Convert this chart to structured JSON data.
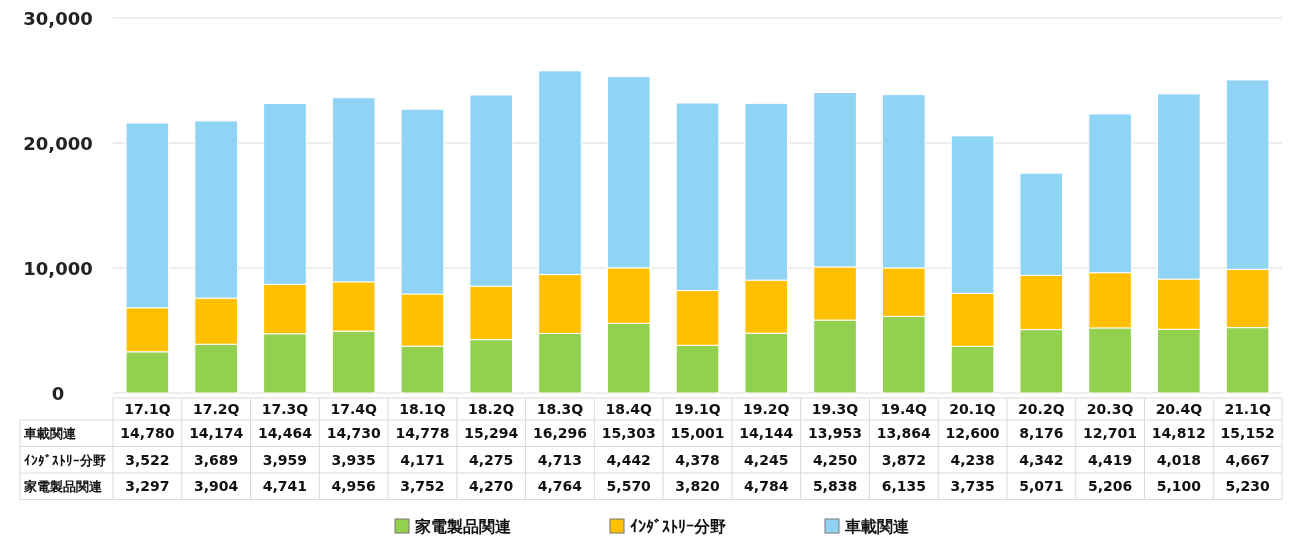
{
  "chart_data": {
    "type": "bar",
    "stacked": true,
    "categories": [
      "17.1Q",
      "17.2Q",
      "17.3Q",
      "17.4Q",
      "18.1Q",
      "18.2Q",
      "18.3Q",
      "18.4Q",
      "19.1Q",
      "19.2Q",
      "19.3Q",
      "19.4Q",
      "20.1Q",
      "20.2Q",
      "20.3Q",
      "20.4Q",
      "21.1Q"
    ],
    "series": [
      {
        "name": "家電製品関連",
        "color": "#92d050",
        "values": [
          3297,
          3904,
          4741,
          4956,
          3752,
          4270,
          4764,
          5570,
          3820,
          4784,
          5838,
          6135,
          3735,
          5071,
          5206,
          5100,
          5230
        ],
        "value_labels": [
          "3,297",
          "3,904",
          "4,741",
          "4,956",
          "3,752",
          "4,270",
          "4,764",
          "5,570",
          "3,820",
          "4,784",
          "5,838",
          "6,135",
          "3,735",
          "5,071",
          "5,206",
          "5,100",
          "5,230"
        ]
      },
      {
        "name": "ｲﾝﾀﾞｽﾄﾘｰ分野",
        "color": "#ffc000",
        "values": [
          3522,
          3689,
          3959,
          3935,
          4171,
          4275,
          4713,
          4442,
          4378,
          4245,
          4250,
          3872,
          4238,
          4342,
          4419,
          4018,
          4667
        ],
        "value_labels": [
          "3,522",
          "3,689",
          "3,959",
          "3,935",
          "4,171",
          "4,275",
          "4,713",
          "4,442",
          "4,378",
          "4,245",
          "4,250",
          "3,872",
          "4,238",
          "4,342",
          "4,419",
          "4,018",
          "4,667"
        ]
      },
      {
        "name": "車載関連",
        "color": "#8fd3f5",
        "values": [
          14780,
          14174,
          14464,
          14730,
          14778,
          15294,
          16296,
          15303,
          15001,
          14144,
          13953,
          13864,
          12600,
          8176,
          12701,
          14812,
          15152
        ],
        "value_labels": [
          "14,780",
          "14,174",
          "14,464",
          "14,730",
          "14,778",
          "15,294",
          "16,296",
          "15,303",
          "15,001",
          "14,144",
          "13,953",
          "13,864",
          "12,600",
          "8,176",
          "12,701",
          "14,812",
          "15,152"
        ]
      }
    ],
    "ylim": [
      0,
      30000
    ],
    "yticks": [
      {
        "value": 0,
        "label": "0"
      },
      {
        "value": 10000,
        "label": "10,000"
      },
      {
        "value": 20000,
        "label": "20,000"
      },
      {
        "value": 30000,
        "label": "30,000"
      }
    ],
    "grid": "y",
    "legend": "bottom"
  }
}
